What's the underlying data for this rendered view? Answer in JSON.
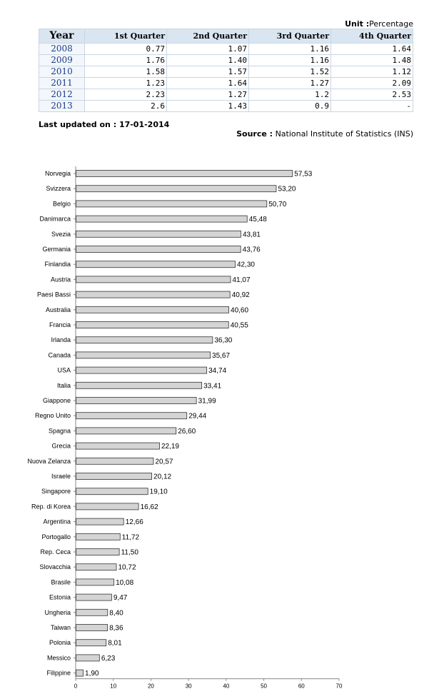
{
  "table": {
    "unit_label": "Unit :",
    "unit_value": "Percentage",
    "headers": [
      "Year",
      "1st Quarter",
      "2nd Quarter",
      "3rd Quarter",
      "4th Quarter"
    ],
    "rows": [
      [
        "2008",
        "0.77",
        "1.07",
        "1.16",
        "1.64"
      ],
      [
        "2009",
        "1.76",
        "1.40",
        "1.16",
        "1.48"
      ],
      [
        "2010",
        "1.58",
        "1.57",
        "1.52",
        "1.12"
      ],
      [
        "2011",
        "1.23",
        "1.64",
        "1.27",
        "2.09"
      ],
      [
        "2012",
        "2.23",
        "1.27",
        "1.2",
        "2.53"
      ],
      [
        "2013",
        "2.6",
        "1.43",
        "0.9",
        "-"
      ]
    ],
    "updated": "Last updated on : 17-01-2014",
    "source_label": "Source :",
    "source_value": "National Institute of Statistics (INS)"
  },
  "chart_data": {
    "type": "bar",
    "orientation": "horizontal",
    "title": "",
    "xlabel": "",
    "ylabel": "",
    "xlim": [
      0,
      70
    ],
    "ticks": [
      0,
      10,
      20,
      30,
      40,
      50,
      60,
      70
    ],
    "grid": false,
    "bar_color": "#d4d4d4",
    "categories": [
      "Norvegia",
      "Svizzera",
      "Belgio",
      "Danimarca",
      "Svezia",
      "Germania",
      "Finlandia",
      "Austria",
      "Paesi Bassi",
      "Australia",
      "Francia",
      "Irlanda",
      "Canada",
      "USA",
      "Italia",
      "Giappone",
      "Regno Unito",
      "Spagna",
      "Grecia",
      "Nuova Zelanza",
      "Israele",
      "Singapore",
      "Rep. di Korea",
      "Argentina",
      "Portogallo",
      "Rep. Ceca",
      "Slovacchia",
      "Brasile",
      "Estonia",
      "Ungheria",
      "Taiwan",
      "Polonia",
      "Messico",
      "Filippine"
    ],
    "values": [
      57.53,
      53.2,
      50.7,
      45.48,
      43.81,
      43.76,
      42.3,
      41.07,
      40.92,
      40.6,
      40.55,
      36.3,
      35.67,
      34.74,
      33.41,
      31.99,
      29.44,
      26.6,
      22.19,
      20.57,
      20.12,
      19.1,
      16.62,
      12.66,
      11.72,
      11.5,
      10.72,
      10.08,
      9.47,
      8.4,
      8.36,
      8.01,
      6.23,
      1.9
    ],
    "value_labels": [
      "57,53",
      "53,20",
      "50,70",
      "45,48",
      "43,81",
      "43,76",
      "42,30",
      "41,07",
      "40,92",
      "40,60",
      "40,55",
      "36,30",
      "35,67",
      "34,74",
      "33,41",
      "31,99",
      "29,44",
      "26,60",
      "22,19",
      "20,57",
      "20,12",
      "19,10",
      "16,62",
      "12,66",
      "11,72",
      "11,50",
      "10,72",
      "10,08",
      "9,47",
      "8,40",
      "8,36",
      "8,01",
      "6,23",
      "1,90"
    ]
  }
}
